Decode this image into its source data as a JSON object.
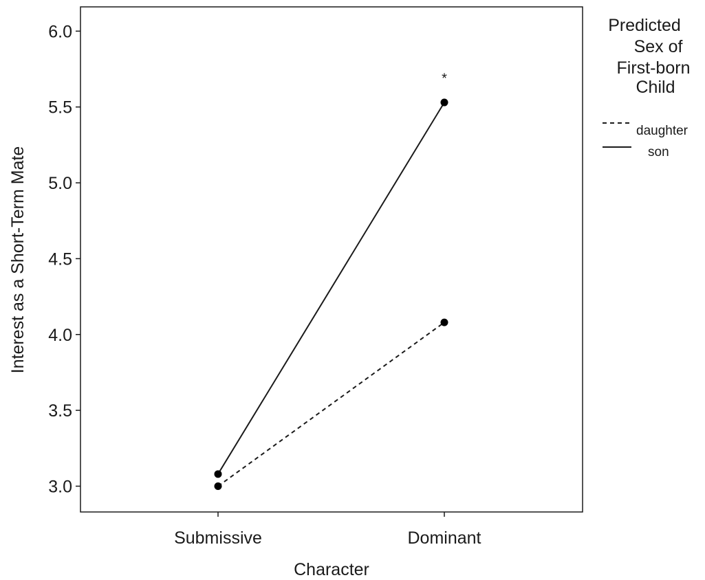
{
  "chart_data": {
    "type": "line",
    "xlabel": "Character",
    "ylabel": "Interest as a Short-Term Mate",
    "categories": [
      "Submissive",
      "Dominant"
    ],
    "ylim": [
      2.83,
      6.16
    ],
    "yticks": [
      "3.0",
      "3.5",
      "4.0",
      "4.5",
      "5.0",
      "5.5",
      "6.0"
    ],
    "grid": false,
    "legend": {
      "title_lines": [
        "Predicted",
        "Sex of",
        "First-born",
        "Child"
      ],
      "placement": "right"
    },
    "series": [
      {
        "name": "daughter",
        "values": [
          3.0,
          4.08
        ],
        "line_style": "dashed",
        "color": "#1a1a1a"
      },
      {
        "name": "son",
        "values": [
          3.08,
          5.53
        ],
        "line_style": "solid",
        "color": "#1a1a1a"
      }
    ],
    "annotations": [
      {
        "text": "*",
        "category": "Dominant",
        "value": 5.7
      }
    ]
  }
}
